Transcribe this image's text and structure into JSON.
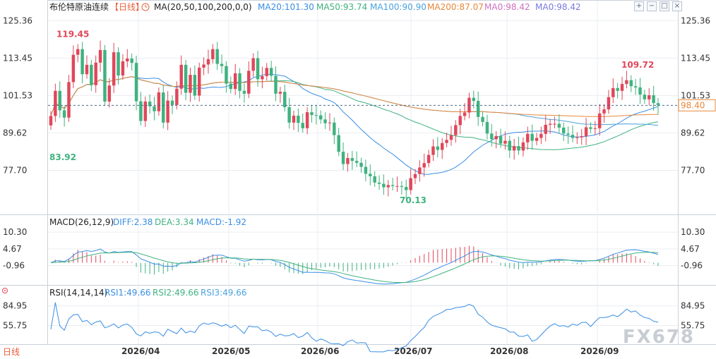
{
  "header": {
    "instrument": "布伦特原油连续",
    "period_tag": "【日线】",
    "period_icon": "clock-icon",
    "ma_params": "MA(20,50,100,200,0,0)",
    "ma_values": [
      {
        "label": "MA20:101.30",
        "color": "#3a8ee6"
      },
      {
        "label": "MA50:93.74",
        "color": "#3fb27f"
      },
      {
        "label": "MA100:90.90",
        "color": "#4aa3df"
      },
      {
        "label": "MA200:87.07",
        "color": "#e8883a"
      },
      {
        "label": "MA0:98.42",
        "color": "#d070c0"
      },
      {
        "label": "MA0:98.42",
        "color": "#7a7adf"
      }
    ]
  },
  "toolbar": {
    "icons": [
      "expand-icon",
      "collapse-icon",
      "maximize-icon",
      "close-icon"
    ]
  },
  "price_axis": {
    "ticks": [
      "125.36",
      "113.45",
      "101.53",
      "89.62",
      "77.70"
    ],
    "current": "98.40"
  },
  "macd_panel": {
    "title": "MACD(26,12,9)",
    "diff": "DIFF:2.38",
    "dea": "DEA:3.34",
    "macd": "MACD:-1.92",
    "ticks": [
      "10.30",
      "4.67",
      "-0.96"
    ]
  },
  "rsi_panel": {
    "title": "RSI(14,14,14)",
    "rsi1": "RSI1:49.66",
    "rsi2": "RSI2:49.66",
    "rsi3": "RSI3:49.66",
    "ticks": [
      "84.95",
      "55.75"
    ]
  },
  "x_axis": {
    "labels": [
      "2026/04",
      "2026/05",
      "2026/06",
      "2026/07",
      "2026/08",
      "2026/09"
    ]
  },
  "footer": {
    "period": "日线",
    "watermark": "FX678"
  },
  "colors": {
    "up": "#e0475a",
    "down": "#3fb27f",
    "grid": "#e9edf2",
    "dashed": "#4a6a8a"
  },
  "chart_data": {
    "type": "candlestick",
    "ylim": [
      65,
      127
    ],
    "y_ticks": [
      125.36,
      113.45,
      101.53,
      89.62,
      77.7
    ],
    "current_price": 98.4,
    "annotations": [
      {
        "label": "119.45",
        "value": 119.45,
        "kind": "high"
      },
      {
        "label": "83.92",
        "value": 83.92,
        "kind": "low"
      },
      {
        "label": "70.13",
        "value": 70.13,
        "kind": "low"
      },
      {
        "label": "109.72",
        "value": 109.72,
        "kind": "high"
      }
    ],
    "x_labels": [
      "2026/04",
      "2026/05",
      "2026/06",
      "2026/07",
      "2026/08",
      "2026/09"
    ],
    "closes": [
      95.0,
      103.0,
      96.8,
      94.5,
      105.8,
      114.5,
      116.3,
      108.3,
      111.3,
      104.8,
      112.0,
      116.0,
      99.6,
      104.7,
      115.3,
      107.9,
      112.4,
      113.3,
      111.9,
      99.7,
      93.4,
      99.6,
      98.1,
      96.5,
      102.5,
      92.9,
      99.9,
      98.5,
      103.7,
      111.3,
      102.4,
      108.1,
      101.5,
      110.4,
      111.4,
      113.1,
      116.3,
      111.6,
      110.9,
      105.3,
      103.6,
      108.6,
      103.0,
      102.1,
      109.4,
      113.4,
      106.7,
      107.7,
      110.3,
      107.8,
      102.1,
      102.7,
      97.8,
      92.9,
      95.1,
      92.8,
      91.1,
      96.2,
      95.3,
      95.2,
      93.9,
      92.7,
      92.9,
      88.9,
      83.6,
      79.7,
      81.6,
      80.7,
      80.1,
      78.8,
      76.6,
      75.8,
      73.8,
      73.4,
      72.3,
      73.0,
      72.7,
      72.7,
      72.4,
      71.4,
      75.2,
      76.5,
      78.6,
      80.0,
      82.6,
      85.3,
      84.2,
      86.4,
      87.4,
      88.9,
      92.1,
      95.0,
      96.1,
      100.8,
      99.8,
      94.7,
      93.1,
      89.4,
      87.6,
      88.6,
      86.2,
      87.1,
      84.0,
      85.4,
      84.0,
      86.6,
      89.3,
      87.1,
      88.0,
      89.3,
      92.2,
      92.5,
      92.5,
      91.3,
      89.4,
      89.0,
      88.0,
      88.2,
      88.6,
      91.4,
      90.9,
      91.1,
      95.8,
      97.1,
      101.0,
      103.9,
      103.0,
      105.2,
      106.4,
      104.5,
      104.1,
      101.8,
      100.3,
      101.6,
      99.1,
      98.4
    ],
    "opens": [
      92.0,
      95.0,
      103.0,
      96.8,
      94.5,
      105.8,
      114.5,
      116.3,
      108.3,
      111.3,
      104.8,
      112.0,
      116.0,
      99.6,
      104.7,
      115.3,
      107.9,
      112.4,
      113.3,
      111.9,
      99.7,
      93.4,
      99.6,
      98.1,
      96.5,
      102.5,
      92.9,
      99.9,
      98.5,
      103.7,
      111.3,
      102.4,
      108.1,
      101.5,
      110.4,
      111.4,
      113.1,
      116.3,
      111.6,
      110.9,
      105.3,
      103.6,
      108.6,
      103.0,
      102.1,
      109.4,
      113.4,
      106.7,
      107.7,
      110.3,
      107.8,
      102.1,
      102.7,
      97.8,
      92.9,
      95.1,
      92.8,
      91.1,
      96.2,
      95.3,
      95.2,
      93.9,
      92.7,
      92.9,
      88.9,
      83.6,
      79.7,
      81.6,
      80.7,
      80.1,
      78.8,
      76.6,
      75.8,
      73.8,
      73.4,
      72.3,
      73.0,
      72.7,
      72.7,
      72.4,
      71.4,
      75.2,
      76.5,
      78.6,
      80.0,
      82.6,
      85.3,
      84.2,
      86.4,
      87.4,
      88.9,
      92.1,
      95.0,
      96.1,
      100.8,
      99.8,
      94.7,
      93.1,
      89.4,
      87.6,
      88.6,
      86.2,
      87.1,
      84.0,
      85.4,
      84.0,
      86.6,
      89.3,
      87.1,
      88.0,
      89.3,
      92.2,
      92.5,
      92.5,
      91.3,
      89.4,
      89.0,
      88.0,
      88.2,
      88.6,
      91.4,
      90.9,
      91.1,
      95.8,
      97.1,
      101.0,
      103.9,
      103.0,
      105.2,
      106.4,
      104.5,
      104.1,
      101.8,
      100.3,
      101.6,
      99.1
    ],
    "macd_ylim": [
      -7,
      12
    ],
    "macd_ticks": [
      10.3,
      4.67,
      -0.96
    ],
    "rsi_ylim": [
      30,
      95
    ],
    "rsi_ticks": [
      84.95,
      55.75
    ],
    "diff": 2.38,
    "dea": 3.34,
    "macd": -1.92,
    "rsi": 49.66
  }
}
